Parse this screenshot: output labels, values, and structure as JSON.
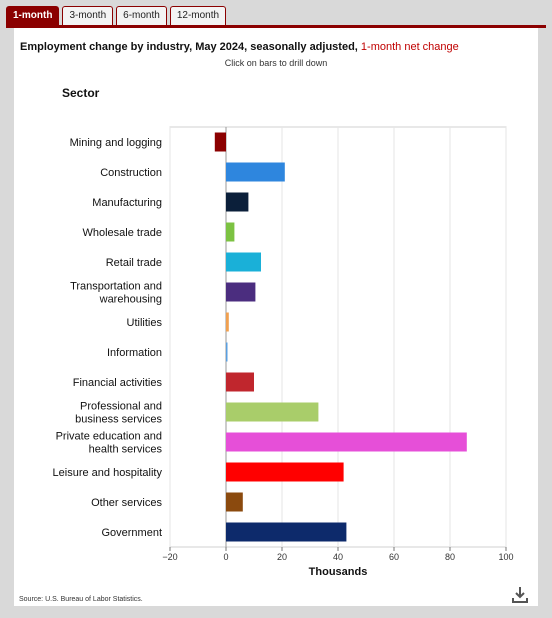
{
  "tabs": [
    "1-month",
    "3-month",
    "6-month",
    "12-month"
  ],
  "active_tab": 0,
  "title_main": "Employment change by industry, May 2024, seasonally adjusted, ",
  "title_highlight": "1-month net change",
  "subtitle": "Click on bars to drill down",
  "sector_header": "Sector",
  "source": "Source: U.S. Bureau of Labor Statistics.",
  "download_icon": "download-icon",
  "chart_data": {
    "type": "bar",
    "orientation": "horizontal",
    "categories": [
      "Mining and logging",
      "Construction",
      "Manufacturing",
      "Wholesale trade",
      "Retail trade",
      "Transportation and warehousing",
      "Utilities",
      "Information",
      "Financial activities",
      "Professional and business services",
      "Private education and health services",
      "Leisure and hospitality",
      "Other services",
      "Government"
    ],
    "values": [
      -4,
      21,
      8,
      3,
      12.5,
      10.5,
      1,
      0.5,
      10,
      33,
      86,
      42,
      6,
      43
    ],
    "colors": [
      "#8b0000",
      "#2e86de",
      "#0b1f3a",
      "#7cc242",
      "#1ab0d8",
      "#4b2d7f",
      "#f0a050",
      "#5a9fe0",
      "#c0262d",
      "#a9cd6a",
      "#e64fd8",
      "#ff0000",
      "#8b4a0e",
      "#0d2a6b"
    ],
    "xlabel": "Thousands",
    "ylabel": "Sector",
    "xlim": [
      -20,
      100
    ],
    "xticks": [
      -20,
      0,
      20,
      40,
      60,
      80,
      100
    ],
    "grid": true
  }
}
